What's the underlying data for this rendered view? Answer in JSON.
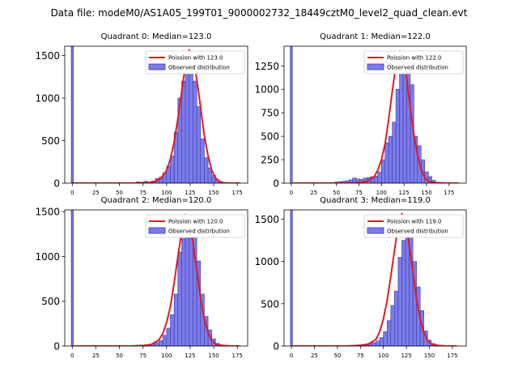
{
  "figure_title": "Data file: modeM0/AS1A05_199T01_9000002732_18449cztM0_level2_quad_clean.evt",
  "colors": {
    "bar_fill": "#7b7bea",
    "bar_edge": "#3a3aa8",
    "curve": "#e31a1c"
  },
  "chart_data": [
    {
      "type": "bar",
      "title": "Quadrant 0: Median=123.0",
      "xticks": [
        0,
        25,
        50,
        75,
        100,
        125,
        150,
        175
      ],
      "xlim": [
        -8,
        186
      ],
      "yticks": [
        0,
        500,
        1000,
        1500
      ],
      "ylim": [
        0,
        1610
      ],
      "median": 123.0,
      "zero_bin": {
        "x": 0,
        "value": 1610
      },
      "bin_width": 4,
      "bin_starts": [
        68,
        72,
        76,
        80,
        84,
        88,
        92,
        96,
        100,
        104,
        108,
        112,
        116,
        120,
        124,
        128,
        132,
        136,
        140,
        144,
        148,
        152,
        156
      ],
      "values": [
        15,
        12,
        22,
        10,
        25,
        55,
        70,
        120,
        200,
        320,
        600,
        1000,
        1200,
        1450,
        1550,
        1200,
        900,
        520,
        300,
        180,
        90,
        40,
        12
      ],
      "curve_x": [
        0,
        60,
        80,
        88,
        94,
        100,
        104,
        108,
        112,
        116,
        120,
        124,
        128,
        132,
        136,
        140,
        144,
        148,
        152,
        156,
        160,
        170,
        178
      ],
      "curve_y": [
        0,
        0,
        5,
        20,
        60,
        150,
        280,
        480,
        760,
        1080,
        1380,
        1560,
        1500,
        1220,
        900,
        560,
        320,
        150,
        60,
        20,
        5,
        0,
        0
      ],
      "legend": [
        "Poission with 123.0",
        "Observed distribution"
      ]
    },
    {
      "type": "bar",
      "title": "Quadrant 1: Median=122.0",
      "xticks": [
        0,
        25,
        50,
        75,
        100,
        125,
        150,
        175
      ],
      "xlim": [
        -8,
        194
      ],
      "yticks": [
        0,
        250,
        500,
        750,
        1000,
        1250
      ],
      "ylim": [
        0,
        1460
      ],
      "median": 122.0,
      "zero_bin": {
        "x": 0,
        "value": 1460
      },
      "bin_width": 4,
      "bin_starts": [
        48,
        52,
        56,
        60,
        64,
        68,
        72,
        76,
        80,
        84,
        88,
        92,
        96,
        100,
        104,
        108,
        112,
        116,
        120,
        124,
        128,
        132,
        136,
        140,
        144,
        148,
        152,
        156,
        160,
        164
      ],
      "values": [
        12,
        15,
        20,
        25,
        35,
        55,
        45,
        40,
        55,
        60,
        70,
        75,
        120,
        250,
        430,
        500,
        650,
        1000,
        1250,
        1400,
        1350,
        1050,
        500,
        400,
        250,
        120,
        70,
        30,
        8,
        5
      ],
      "curve_x": [
        0,
        60,
        76,
        84,
        92,
        96,
        100,
        104,
        108,
        112,
        116,
        120,
        124,
        128,
        132,
        136,
        140,
        144,
        148,
        152,
        160,
        170,
        186
      ],
      "curve_y": [
        0,
        0,
        5,
        20,
        70,
        140,
        250,
        420,
        680,
        980,
        1250,
        1400,
        1350,
        1120,
        800,
        520,
        300,
        150,
        60,
        20,
        5,
        0,
        0
      ],
      "legend": [
        "Poission with 122.0",
        "Observed distribution"
      ]
    },
    {
      "type": "bar",
      "title": "Quadrant 2: Median=120.0",
      "xticks": [
        0,
        25,
        50,
        75,
        100,
        125,
        150,
        175
      ],
      "xlim": [
        -8,
        186
      ],
      "yticks": [
        0,
        500,
        1000,
        1500
      ],
      "ylim": [
        0,
        1520
      ],
      "median": 120.0,
      "zero_bin": {
        "x": 0,
        "value": 1520
      },
      "bin_width": 4,
      "bin_starts": [
        68,
        72,
        76,
        80,
        84,
        88,
        92,
        96,
        100,
        104,
        108,
        112,
        116,
        120,
        124,
        128,
        132,
        136,
        140,
        144,
        148,
        152,
        156
      ],
      "values": [
        10,
        12,
        15,
        20,
        25,
        40,
        60,
        120,
        200,
        350,
        580,
        1050,
        1200,
        1450,
        1380,
        1300,
        950,
        580,
        330,
        180,
        80,
        30,
        10
      ],
      "curve_x": [
        0,
        60,
        76,
        84,
        92,
        96,
        100,
        104,
        108,
        112,
        116,
        120,
        124,
        128,
        132,
        136,
        140,
        144,
        148,
        152,
        160,
        170,
        178
      ],
      "curve_y": [
        0,
        0,
        5,
        20,
        70,
        140,
        260,
        440,
        700,
        1000,
        1280,
        1460,
        1400,
        1150,
        850,
        540,
        300,
        150,
        60,
        20,
        5,
        0,
        0
      ],
      "legend": [
        "Poission with 120.0",
        "Observed distribution"
      ]
    },
    {
      "type": "bar",
      "title": "Quadrant 3: Median=119.0",
      "xticks": [
        0,
        25,
        50,
        75,
        100,
        125,
        150,
        175
      ],
      "xlim": [
        -8,
        190
      ],
      "yticks": [
        0,
        500,
        1000,
        1500
      ],
      "ylim": [
        0,
        1610
      ],
      "median": 119.0,
      "zero_bin": {
        "x": 0,
        "value": 1610
      },
      "bin_width": 4,
      "bin_starts": [
        60,
        64,
        68,
        72,
        76,
        80,
        84,
        88,
        92,
        96,
        100,
        104,
        108,
        112,
        116,
        120,
        124,
        128,
        132,
        136,
        140,
        144,
        148,
        152,
        156
      ],
      "values": [
        8,
        10,
        12,
        15,
        20,
        25,
        30,
        40,
        60,
        100,
        170,
        300,
        480,
        650,
        1050,
        1250,
        1500,
        1350,
        1000,
        700,
        420,
        180,
        70,
        30,
        10
      ],
      "curve_x": [
        0,
        60,
        76,
        84,
        92,
        96,
        100,
        104,
        108,
        112,
        116,
        120,
        124,
        128,
        132,
        136,
        140,
        144,
        148,
        152,
        160,
        170,
        180
      ],
      "curve_y": [
        0,
        0,
        5,
        25,
        80,
        170,
        320,
        540,
        820,
        1130,
        1420,
        1560,
        1480,
        1200,
        880,
        560,
        320,
        160,
        70,
        25,
        5,
        0,
        0
      ],
      "legend": [
        "Poission with 119.0",
        "Observed distribution"
      ]
    }
  ]
}
